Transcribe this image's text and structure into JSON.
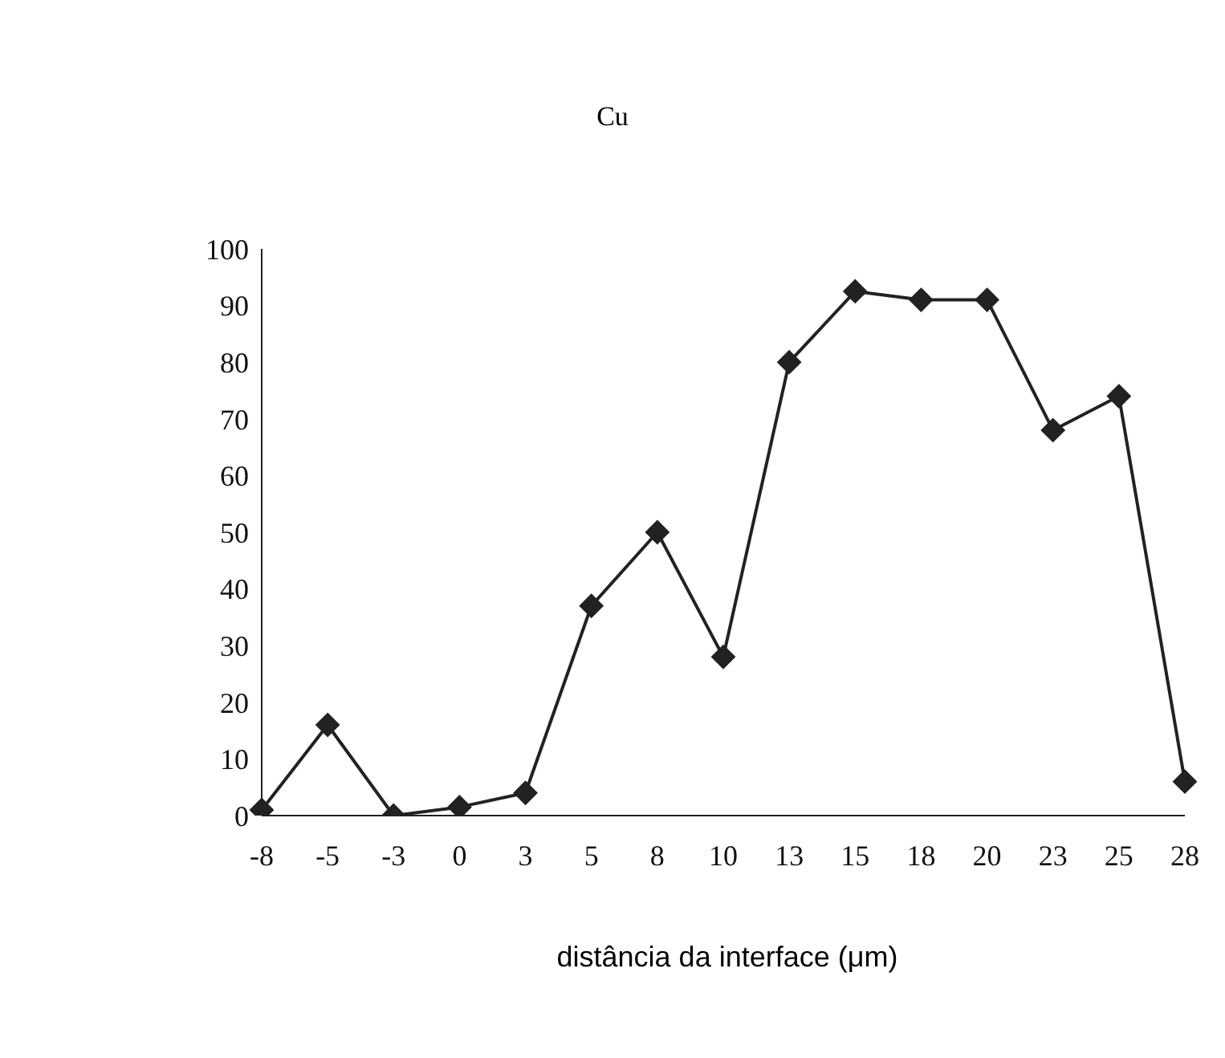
{
  "chart_data": {
    "type": "line",
    "title": "Cu",
    "xlabel": "distância da interface (μm)",
    "categories": [
      "-8",
      "-5",
      "-3",
      "0",
      "3",
      "5",
      "8",
      "10",
      "13",
      "15",
      "18",
      "20",
      "23",
      "25",
      "28"
    ],
    "series": [
      {
        "color": "#222222",
        "values": [
          1,
          16,
          0,
          1.5,
          4,
          37,
          50,
          28,
          80,
          92.5,
          91,
          91,
          68,
          74,
          6
        ]
      }
    ],
    "ylim": [
      0,
      100
    ],
    "yticks": [
      0,
      10,
      20,
      30,
      40,
      50,
      60,
      70,
      80,
      90,
      100
    ],
    "grid": false,
    "legend": false,
    "marker": "diamond",
    "line_style": "solid"
  }
}
